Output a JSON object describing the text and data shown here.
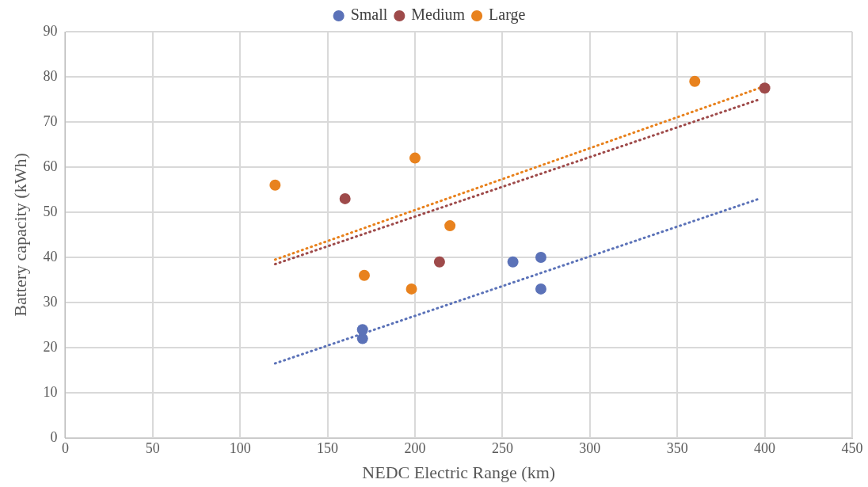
{
  "chart_data": {
    "type": "scatter",
    "xlabel": "NEDC Electric Range (km)",
    "ylabel": "Battery capacity (kWh)",
    "xlim": [
      0,
      450
    ],
    "ylim": [
      0,
      90
    ],
    "xticks": [
      0,
      50,
      100,
      150,
      200,
      250,
      300,
      350,
      400,
      450
    ],
    "yticks": [
      0,
      10,
      20,
      30,
      40,
      50,
      60,
      70,
      80,
      90
    ],
    "grid": true,
    "legend": "top",
    "marker": "circle",
    "series": [
      {
        "name": "Small",
        "color": "#5b72b8",
        "x": [
          170,
          170,
          256,
          272,
          272
        ],
        "values": [
          22,
          24,
          39,
          40,
          33
        ]
      },
      {
        "name": "Medium",
        "color": "#9e4a4a",
        "x": [
          160,
          214,
          400
        ],
        "values": [
          53,
          39,
          77.5
        ]
      },
      {
        "name": "Large",
        "color": "#e8821e",
        "x": [
          120,
          171,
          198,
          200,
          220,
          360
        ],
        "values": [
          56,
          36,
          33,
          62,
          47,
          79
        ]
      },
      {
        "type": "line",
        "color": "#5b72b8",
        "line_style": "dotted",
        "marker": "none",
        "x": [
          120,
          397
        ],
        "values": [
          16.5,
          53
        ]
      },
      {
        "type": "line",
        "color": "#9e4a4a",
        "line_style": "dotted",
        "marker": "none",
        "x": [
          120,
          397
        ],
        "values": [
          38.5,
          75
        ]
      },
      {
        "type": "line",
        "color": "#e8821e",
        "line_style": "dotted",
        "marker": "none",
        "x": [
          120,
          397
        ],
        "values": [
          39.5,
          77.5
        ]
      }
    ]
  }
}
